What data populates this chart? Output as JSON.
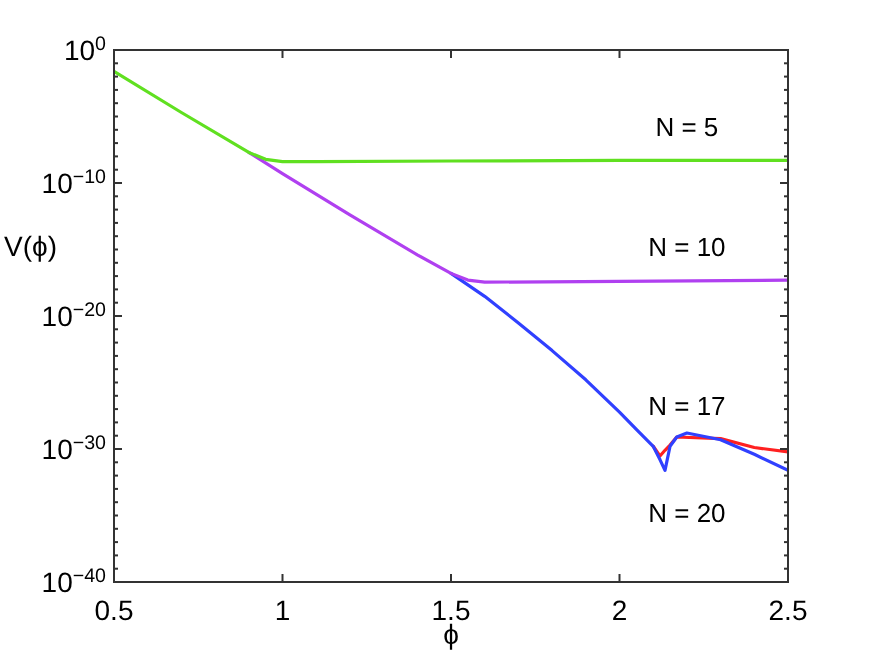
{
  "chart_data": {
    "type": "line",
    "xlabel": "ϕ",
    "ylabel": "V(ϕ)",
    "log": "y",
    "xlim": [
      0.5,
      2.5
    ],
    "xticks": [
      0.5,
      1,
      1.5,
      2,
      2.5
    ],
    "ylim": [
      1e-40,
      1
    ],
    "yticks": [
      {
        "value": 1,
        "label": "10$^{0}$"
      },
      {
        "value": 1e-10,
        "label": "10$^{−10}$"
      },
      {
        "value": 1e-20,
        "label": "10$^{−20}$"
      },
      {
        "value": 1e-30,
        "label": "10$^{−30}$"
      },
      {
        "value": 1e-40,
        "label": "10$^{−40}$"
      },
      {
        "value": 0.1,
        "label": null
      },
      {
        "value": 0.01,
        "label": null
      },
      {
        "value": 0.001,
        "label": null
      },
      {
        "value": 0.0001,
        "label": null
      },
      {
        "value": 1e-05,
        "label": null
      },
      {
        "value": 1e-06,
        "label": null
      },
      {
        "value": 1e-07,
        "label": null
      },
      {
        "value": 1e-08,
        "label": null
      },
      {
        "value": 1e-09,
        "label": null
      },
      {
        "value": 1e-11,
        "label": null
      },
      {
        "value": 1e-12,
        "label": null
      },
      {
        "value": 1e-13,
        "label": null
      },
      {
        "value": 1e-14,
        "label": null
      },
      {
        "value": 1e-15,
        "label": null
      },
      {
        "value": 1e-16,
        "label": null
      },
      {
        "value": 1e-17,
        "label": null
      },
      {
        "value": 1e-18,
        "label": null
      },
      {
        "value": 1e-19,
        "label": null
      },
      {
        "value": 1e-21,
        "label": null
      },
      {
        "value": 1e-22,
        "label": null
      },
      {
        "value": 1e-23,
        "label": null
      },
      {
        "value": 1e-24,
        "label": null
      },
      {
        "value": 1e-25,
        "label": null
      },
      {
        "value": 1e-26,
        "label": null
      },
      {
        "value": 1e-27,
        "label": null
      },
      {
        "value": 1e-28,
        "label": null
      },
      {
        "value": 1e-29,
        "label": null
      },
      {
        "value": 1e-31,
        "label": null
      },
      {
        "value": 1e-32,
        "label": null
      },
      {
        "value": 1e-33,
        "label": null
      },
      {
        "value": 1e-34,
        "label": null
      },
      {
        "value": 1e-35,
        "label": null
      },
      {
        "value": 1e-36,
        "label": null
      },
      {
        "value": 1e-37,
        "label": null
      },
      {
        "value": 1e-38,
        "label": null
      },
      {
        "value": 1e-39,
        "label": null
      }
    ],
    "grid": false,
    "series": [
      {
        "name": "N = 17",
        "color": "#ff2020",
        "x": [
          2.1,
          2.12,
          2.135,
          2.15,
          2.17,
          2.3,
          2.4,
          2.5
        ],
        "values": [
          1.6e-30,
          3e-31,
          8e-31,
          2e-30,
          8e-30,
          6e-30,
          1.3e-30,
          6e-31
        ]
      },
      {
        "name": "N = 20",
        "color": "#3040ff",
        "x": [
          1.5,
          1.6,
          1.7,
          1.8,
          1.9,
          2.0,
          2.05,
          2.1,
          2.12,
          2.135,
          2.15,
          2.17,
          2.2,
          2.3,
          2.4,
          2.5
        ],
        "values": [
          1.6e-17,
          3e-19,
          3e-21,
          2.5e-23,
          1.6e-25,
          6e-28,
          3e-29,
          1.6e-30,
          1.6e-31,
          2.5e-32,
          1.6e-30,
          8e-30,
          1.6e-29,
          5e-30,
          4e-31,
          2.5e-32
        ]
      },
      {
        "name": "N = 10",
        "color": "#b040f0",
        "x": [
          0.9,
          1.0,
          1.2,
          1.4,
          1.5,
          1.55,
          1.6,
          2.0,
          2.5
        ],
        "values": [
          2e-08,
          5e-10,
          4e-13,
          4e-16,
          1.6e-17,
          5e-18,
          3.5e-18,
          4e-18,
          5e-18
        ]
      },
      {
        "name": "N = 5",
        "color": "#60e020",
        "x": [
          0.5,
          0.7,
          0.9,
          0.95,
          1.0,
          1.1,
          1.5,
          2.0,
          2.5
        ],
        "values": [
          0.025,
          2e-05,
          2e-08,
          6e-09,
          4e-09,
          4e-09,
          4.5e-09,
          5e-09,
          5e-09
        ]
      }
    ]
  }
}
